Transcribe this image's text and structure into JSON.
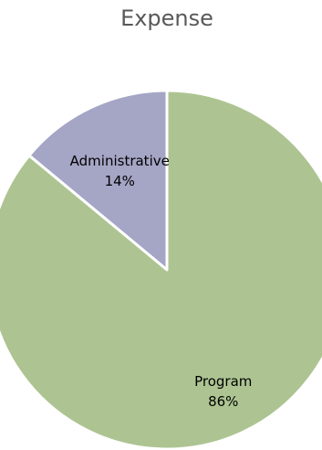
{
  "chart_data": {
    "type": "pie",
    "title": "Expense",
    "slices": [
      {
        "label": "Administrative",
        "value": 14,
        "value_label": "14%",
        "color": "#a5a5c6"
      },
      {
        "label": "Program",
        "value": 86,
        "value_label": "86%",
        "color": "#adc492"
      }
    ],
    "start_angle": "12 o'clock",
    "slice_border_color": "#ffffff",
    "legend": "none"
  }
}
